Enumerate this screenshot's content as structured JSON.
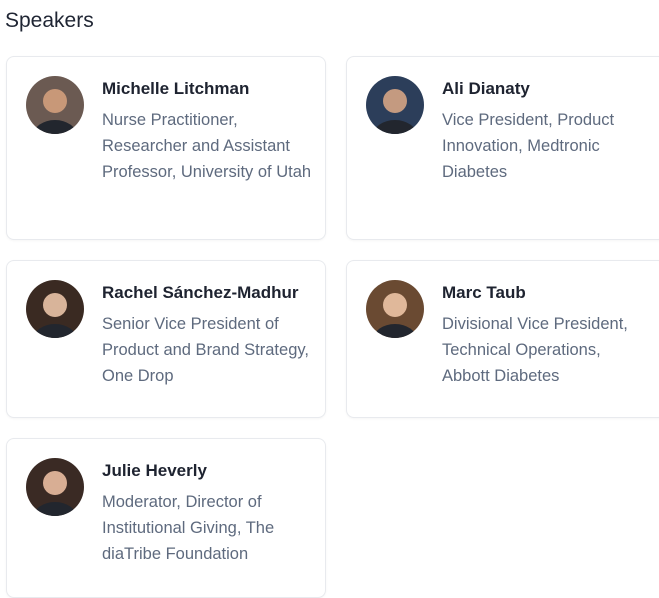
{
  "heading": "Speakers",
  "speakers": [
    {
      "name": "Michelle Litchman",
      "title": "Nurse Practitioner, Researcher and Assistant Professor, University of Utah",
      "bg": "#6b5a52",
      "skin": "#c89878"
    },
    {
      "name": "Ali Dianaty",
      "title": "Vice President, Product Innovation, Medtronic Diabetes",
      "bg": "#2c3e5a",
      "skin": "#c49a80"
    },
    {
      "name": "Rachel Sánchez-Madhur",
      "title": "Senior Vice President of Product and Brand Strategy, One Drop",
      "bg": "#3a2a22",
      "skin": "#d8b49a"
    },
    {
      "name": "Marc Taub",
      "title": "Divisional Vice President, Technical Operations, Abbott Diabetes",
      "bg": "#6a4a32",
      "skin": "#e0b89a"
    },
    {
      "name": "Julie Heverly",
      "title": "Moderator, Director of Institutional Giving, The diaTribe Foundation",
      "bg": "#3a2a24",
      "skin": "#d8ae94"
    }
  ]
}
